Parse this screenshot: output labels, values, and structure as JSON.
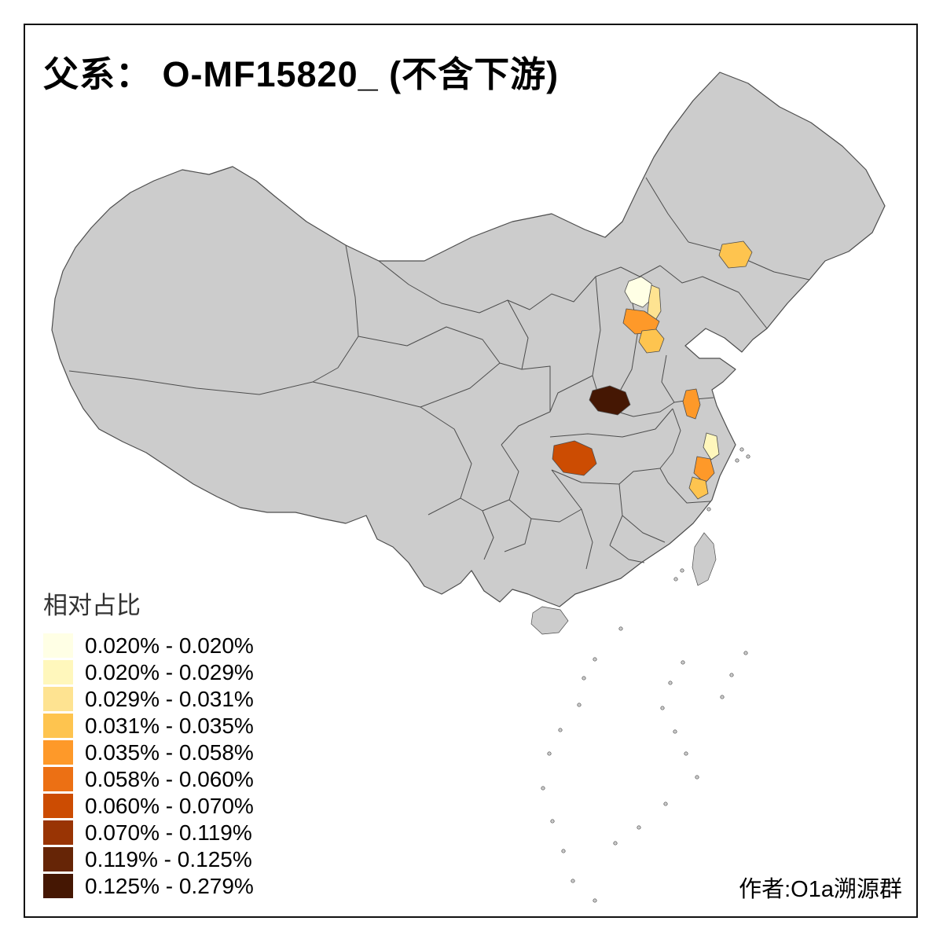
{
  "title": "父系： O-MF15820_ (不含下游)",
  "legend": {
    "title": "相对占比",
    "entries": [
      {
        "color": "#FFFFE5",
        "label": "0.020% - 0.020%"
      },
      {
        "color": "#FFF7BC",
        "label": "0.020% - 0.029%"
      },
      {
        "color": "#FEE391",
        "label": "0.029% - 0.031%"
      },
      {
        "color": "#FEC44F",
        "label": "0.031% - 0.035%"
      },
      {
        "color": "#FE9929",
        "label": "0.035% - 0.058%"
      },
      {
        "color": "#EC7014",
        "label": "0.058% - 0.060%"
      },
      {
        "color": "#CC4C02",
        "label": "0.060% - 0.070%"
      },
      {
        "color": "#993404",
        "label": "0.070% - 0.119%"
      },
      {
        "color": "#662506",
        "label": "0.119% - 0.125%"
      },
      {
        "color": "#451703",
        "label": "0.125% - 0.279%"
      }
    ]
  },
  "attribution": "作者:O1a溯源群",
  "map": {
    "base_fill": "#CCCCCC",
    "border_color": "#4D4D4D",
    "background": "#FFFFFF",
    "regions": [
      {
        "name": "beijing",
        "color": "#FFFFE5"
      },
      {
        "name": "hebei-strip",
        "color": "#FEE391"
      },
      {
        "name": "hebei-central",
        "color": "#FE9929"
      },
      {
        "name": "hebei-south",
        "color": "#FEC44F"
      },
      {
        "name": "liaoning",
        "color": "#FEC44F"
      },
      {
        "name": "shanxi-south",
        "color": "#451703"
      },
      {
        "name": "hubei-west",
        "color": "#CC4C02"
      },
      {
        "name": "jiangsu",
        "color": "#FE9929"
      },
      {
        "name": "zhejiang-coast",
        "color": "#FFF7BC"
      },
      {
        "name": "zhejiang-south",
        "color": "#FE9929"
      },
      {
        "name": "fujian-north",
        "color": "#FEC44F"
      }
    ]
  }
}
